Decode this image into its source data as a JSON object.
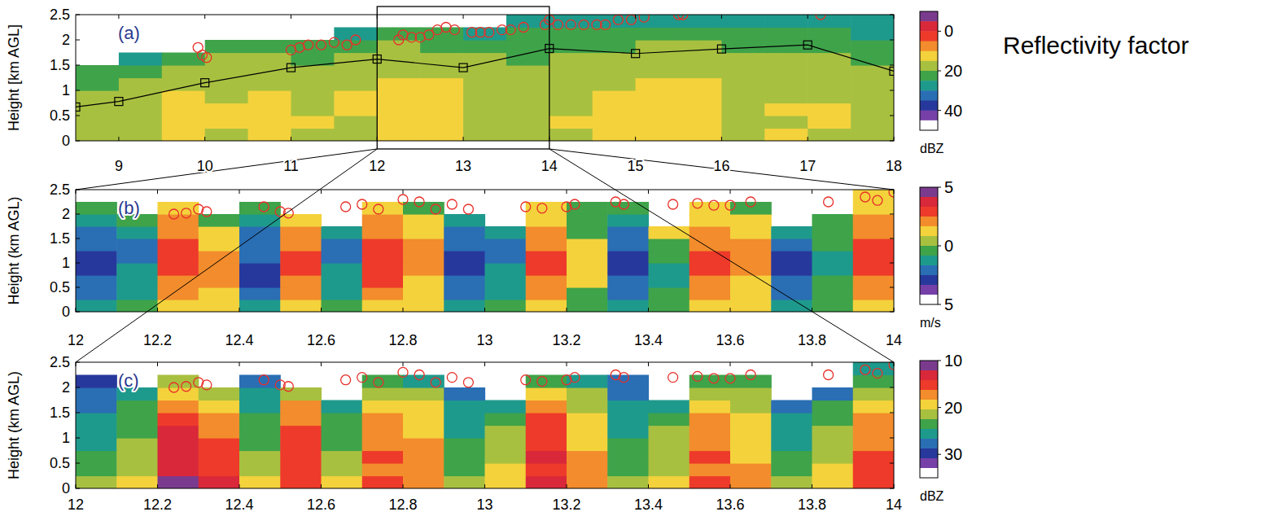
{
  "chart_data": [
    {
      "type": "heatmap",
      "label": "(a)",
      "annotation": "Reflectivity factor",
      "y_label": "Height [km AGL]",
      "xlim": [
        8.5,
        18
      ],
      "xticks": [
        9,
        10,
        11,
        12,
        13,
        14,
        15,
        16,
        17,
        18
      ],
      "ylim": [
        0,
        2.5
      ],
      "yticks": [
        0,
        0.5,
        1,
        1.5,
        2,
        2.5
      ],
      "zoom_x": [
        12,
        14
      ],
      "color_range": [
        -10,
        50
      ],
      "color_ticks": [
        0,
        20,
        40
      ],
      "color_unit": "dBZ",
      "colors": [
        "#7a3b8e",
        "#d8283a",
        "#ee3a2a",
        "#f28c2c",
        "#f4d23c",
        "#a8c040",
        "#3fa34a",
        "#1e9a8c",
        "#2a6eb4",
        "#27389c",
        "#7640a8",
        "#ffffff"
      ],
      "cells": [
        [
          18,
          15,
          14,
          16,
          13,
          15,
          16,
          14,
          12,
          17,
          16,
          15,
          13,
          14,
          12,
          15,
          14,
          16,
          17
        ],
        [
          17,
          15,
          13,
          14,
          12,
          14,
          15,
          13,
          14,
          16,
          15,
          14,
          12,
          13,
          11,
          16,
          15,
          13,
          16
        ],
        [
          18,
          16,
          12,
          14,
          13,
          15,
          14,
          13,
          12,
          15,
          17,
          15,
          13,
          12,
          12,
          17,
          14,
          14,
          15
        ],
        [
          19,
          17,
          13,
          15,
          14,
          16,
          14,
          12,
          13,
          16,
          16,
          16,
          14,
          13,
          13,
          16,
          15,
          15,
          16
        ],
        [
          20,
          18,
          15,
          15,
          15,
          17,
          15,
          14,
          14,
          17,
          17,
          16,
          15,
          14,
          14,
          17,
          16,
          16,
          17
        ],
        [
          24,
          20,
          17,
          17,
          17,
          18,
          16,
          15,
          16,
          18,
          18,
          18,
          16,
          15,
          16,
          18,
          17,
          18,
          19
        ],
        [
          null,
          26,
          22,
          19,
          19,
          20,
          18,
          17,
          18,
          19,
          20,
          19,
          18,
          17,
          17,
          19,
          19,
          19,
          20
        ],
        [
          null,
          null,
          null,
          24,
          23,
          23,
          20,
          19,
          20,
          21,
          21,
          21,
          20,
          19,
          19,
          21,
          21,
          20,
          22
        ],
        [
          null,
          null,
          null,
          null,
          null,
          null,
          25,
          24,
          24,
          25,
          24,
          23,
          22,
          22,
          23,
          23,
          24,
          23,
          25
        ],
        [
          null,
          null,
          null,
          null,
          null,
          null,
          null,
          null,
          null,
          null,
          28,
          27,
          26,
          27,
          28,
          27,
          29,
          28,
          27
        ]
      ],
      "line": {
        "x": [
          8.5,
          9,
          10,
          11,
          12,
          13,
          14,
          15,
          16,
          17,
          18
        ],
        "y": [
          0.67,
          0.78,
          1.15,
          1.45,
          1.62,
          1.45,
          1.83,
          1.73,
          1.82,
          1.9,
          1.38
        ],
        "marker": "square",
        "color": "#000000"
      },
      "points": {
        "x": [
          9.92,
          9.97,
          10.02,
          11.0,
          11.1,
          11.2,
          11.35,
          11.5,
          11.65,
          11.75,
          12.25,
          12.3,
          12.4,
          12.5,
          12.6,
          12.7,
          12.8,
          12.9,
          13.1,
          13.2,
          13.3,
          13.45,
          13.55,
          13.7,
          13.95,
          14.0,
          14.1,
          14.25,
          14.4,
          14.55,
          14.65,
          14.8,
          14.95,
          15.1,
          15.5,
          15.55,
          17.15
        ],
        "y": [
          1.85,
          1.7,
          1.65,
          1.8,
          1.85,
          1.9,
          1.9,
          1.95,
          1.9,
          2.0,
          2.0,
          2.1,
          2.05,
          2.05,
          2.1,
          2.2,
          2.25,
          2.2,
          2.15,
          2.15,
          2.15,
          2.2,
          2.2,
          2.25,
          2.3,
          2.4,
          2.3,
          2.3,
          2.3,
          2.3,
          2.3,
          2.4,
          2.4,
          2.45,
          2.5,
          2.5,
          2.5
        ],
        "marker": "circle",
        "color": "#e8302a"
      }
    },
    {
      "type": "heatmap",
      "label": "(b)",
      "y_label": "Height (km AGL)",
      "xlim": [
        12,
        14
      ],
      "xticks": [
        12,
        12.2,
        12.4,
        12.6,
        12.8,
        13,
        13.2,
        13.4,
        13.6,
        13.8,
        14
      ],
      "ylim": [
        0,
        2.5
      ],
      "yticks": [
        0,
        0.5,
        1,
        1.5,
        2,
        2.5
      ],
      "color_range": [
        5,
        -5
      ],
      "color_ticks": [
        5,
        0,
        {
          "value": -5,
          "label": "5"
        }
      ],
      "color_unit": "m/s",
      "colors": [
        "#7a3b8e",
        "#d8283a",
        "#ee3a2a",
        "#f28c2c",
        "#f4d23c",
        "#a8c040",
        "#3fa34a",
        "#1e9a8c",
        "#2a6eb4",
        "#27389c",
        "#7640a8",
        "#ffffff"
      ],
      "cells": [
        [
          -1,
          0,
          1,
          1,
          -1,
          1,
          0,
          1,
          1,
          -1,
          0,
          1,
          0,
          -1,
          0,
          1,
          1,
          -1,
          0,
          1
        ],
        [
          -2,
          -1,
          2,
          1,
          -2,
          2,
          -1,
          2,
          1,
          -2,
          -1,
          2,
          0,
          -2,
          0,
          2,
          1,
          -2,
          0,
          2
        ],
        [
          -2,
          -1,
          2,
          2,
          -3,
          2,
          -1,
          3,
          1,
          -2,
          -1,
          2,
          1,
          -2,
          -1,
          2,
          1,
          -2,
          0,
          2
        ],
        [
          -3,
          -1,
          3,
          2,
          -3,
          3,
          -1,
          3,
          2,
          -3,
          -1,
          3,
          1,
          -3,
          -1,
          3,
          2,
          -3,
          -1,
          3
        ],
        [
          -3,
          -2,
          3,
          2,
          -2,
          3,
          -2,
          3,
          2,
          -3,
          -2,
          3,
          1,
          -3,
          0,
          3,
          2,
          -3,
          -1,
          3
        ],
        [
          -2,
          -2,
          3,
          1,
          -2,
          2,
          -2,
          3,
          2,
          -2,
          -2,
          2,
          1,
          -2,
          0,
          2,
          2,
          -2,
          0,
          3
        ],
        [
          -2,
          -1,
          2,
          1,
          -2,
          2,
          -1,
          2,
          1,
          -2,
          -1,
          2,
          0,
          -2,
          1,
          2,
          1,
          -1,
          0,
          2
        ],
        [
          -1,
          0,
          2,
          0,
          -1,
          1,
          null,
          2,
          1,
          -1,
          null,
          1,
          0,
          -1,
          null,
          1,
          1,
          null,
          0,
          2
        ],
        [
          0,
          null,
          1,
          null,
          0,
          null,
          null,
          1,
          0,
          null,
          null,
          1,
          0,
          0,
          null,
          1,
          0,
          null,
          null,
          1
        ],
        [
          null,
          null,
          null,
          null,
          null,
          null,
          null,
          null,
          null,
          null,
          null,
          null,
          null,
          null,
          null,
          null,
          null,
          null,
          null,
          1
        ]
      ],
      "points": {
        "x": [
          12.24,
          12.27,
          12.3,
          12.32,
          12.46,
          12.5,
          12.52,
          12.66,
          12.7,
          12.74,
          12.8,
          12.84,
          12.88,
          12.92,
          12.96,
          13.1,
          13.14,
          13.2,
          13.22,
          13.32,
          13.34,
          13.46,
          13.52,
          13.56,
          13.6,
          13.65,
          13.84,
          13.93,
          13.96,
          14.0
        ],
        "y": [
          2.0,
          2.02,
          2.1,
          2.05,
          2.15,
          2.05,
          2.02,
          2.15,
          2.2,
          2.1,
          2.3,
          2.25,
          2.1,
          2.2,
          2.1,
          2.15,
          2.12,
          2.15,
          2.2,
          2.25,
          2.2,
          2.2,
          2.22,
          2.18,
          2.18,
          2.25,
          2.25,
          2.35,
          2.28,
          2.45
        ],
        "marker": "circle",
        "color": "#e8302a"
      }
    },
    {
      "type": "heatmap",
      "label": "(c)",
      "y_label": "Height (km AGL)",
      "xlim": [
        12,
        14
      ],
      "xticks": [
        12,
        12.2,
        12.4,
        12.6,
        12.8,
        13,
        13.2,
        13.4,
        13.6,
        13.8,
        14
      ],
      "ylim": [
        0,
        2.5
      ],
      "yticks": [
        0,
        0.5,
        1,
        1.5,
        2,
        2.5
      ],
      "color_range": [
        10,
        35
      ],
      "color_ticks": [
        10,
        20,
        30
      ],
      "color_unit": "dBZ",
      "colors": [
        "#7a3b8e",
        "#d8283a",
        "#ee3a2a",
        "#f28c2c",
        "#f4d23c",
        "#a8c040",
        "#3fa34a",
        "#1e9a8c",
        "#2a6eb4",
        "#27389c",
        "#7640a8",
        "#ffffff"
      ],
      "cells": [
        [
          22,
          20,
          12,
          14,
          20,
          15,
          20,
          16,
          17,
          22,
          19,
          14,
          17,
          22,
          20,
          16,
          18,
          22,
          19,
          15
        ],
        [
          24,
          21,
          13,
          15,
          21,
          16,
          22,
          17,
          17,
          23,
          20,
          15,
          18,
          23,
          21,
          17,
          18,
          23,
          20,
          16
        ],
        [
          24,
          22,
          13,
          16,
          22,
          15,
          22,
          16,
          18,
          24,
          21,
          14,
          18,
          24,
          21,
          16,
          19,
          24,
          21,
          16
        ],
        [
          25,
          22,
          14,
          16,
          23,
          15,
          23,
          17,
          18,
          24,
          22,
          15,
          19,
          24,
          22,
          17,
          19,
          25,
          22,
          17
        ],
        [
          25,
          23,
          14,
          17,
          23,
          16,
          23,
          18,
          19,
          25,
          22,
          16,
          19,
          25,
          22,
          17,
          20,
          25,
          22,
          17
        ],
        [
          26,
          23,
          15,
          18,
          24,
          17,
          24,
          18,
          19,
          25,
          23,
          16,
          20,
          25,
          23,
          18,
          20,
          26,
          23,
          18
        ],
        [
          27,
          24,
          17,
          19,
          25,
          18,
          26,
          19,
          20,
          26,
          25,
          18,
          21,
          26,
          26,
          19,
          21,
          28,
          24,
          19
        ],
        [
          28,
          26,
          19,
          22,
          26,
          21,
          null,
          21,
          22,
          28,
          null,
          20,
          22,
          27,
          null,
          21,
          22,
          null,
          27,
          21
        ],
        [
          30,
          null,
          22,
          null,
          28,
          null,
          null,
          24,
          25,
          null,
          null,
          23,
          25,
          28,
          null,
          23,
          24,
          null,
          null,
          23
        ],
        [
          null,
          null,
          null,
          null,
          null,
          null,
          null,
          null,
          null,
          null,
          null,
          null,
          null,
          null,
          null,
          null,
          null,
          null,
          null,
          26
        ]
      ],
      "points": {
        "x": [
          12.24,
          12.27,
          12.3,
          12.32,
          12.46,
          12.5,
          12.52,
          12.66,
          12.7,
          12.74,
          12.8,
          12.84,
          12.88,
          12.92,
          12.96,
          13.1,
          13.14,
          13.2,
          13.22,
          13.32,
          13.34,
          13.46,
          13.52,
          13.56,
          13.6,
          13.65,
          13.84,
          13.93,
          13.96,
          14.0
        ],
        "y": [
          2.0,
          2.02,
          2.1,
          2.05,
          2.15,
          2.05,
          2.02,
          2.15,
          2.2,
          2.1,
          2.3,
          2.25,
          2.1,
          2.2,
          2.1,
          2.15,
          2.12,
          2.15,
          2.2,
          2.25,
          2.2,
          2.2,
          2.22,
          2.18,
          2.18,
          2.25,
          2.25,
          2.35,
          2.28,
          2.45
        ],
        "marker": "circle",
        "color": "#e8302a"
      }
    }
  ]
}
